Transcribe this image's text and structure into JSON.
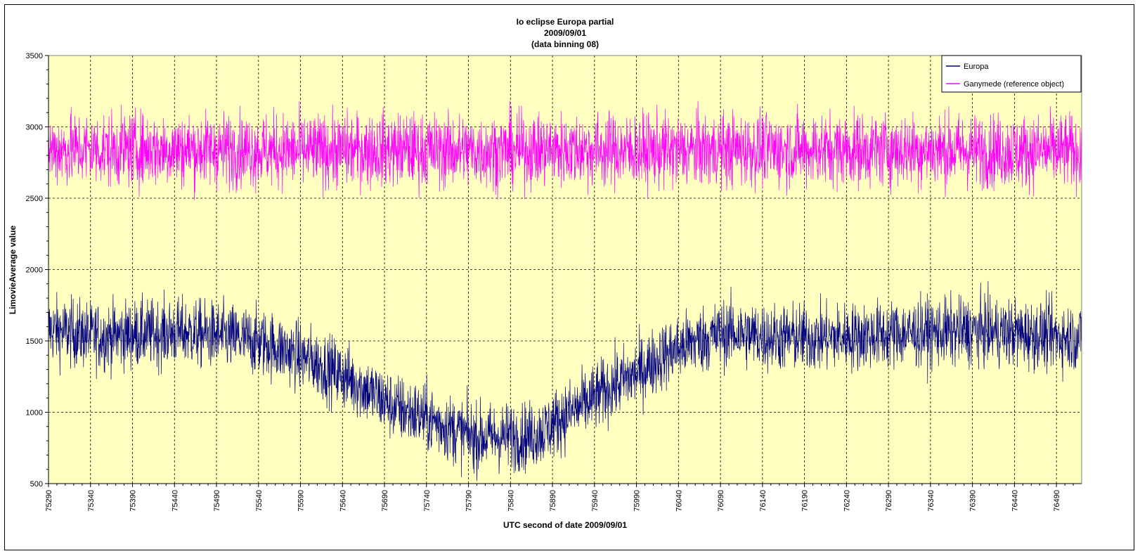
{
  "chart_data": {
    "type": "line",
    "title": [
      "Io eclipse Europa partial",
      "2009/09/01",
      "(data binning 08)"
    ],
    "xlabel": "UTC second  of date 2009/09/01",
    "ylabel": "LimovieAverage value",
    "xlim": [
      75290,
      76520
    ],
    "ylim": [
      500,
      3500
    ],
    "yticks": [
      500,
      1000,
      1500,
      2000,
      2500,
      3000,
      3500
    ],
    "xticks": [
      75290,
      75340,
      75390,
      75440,
      75490,
      75540,
      75590,
      75640,
      75690,
      75740,
      75790,
      75840,
      75890,
      75940,
      75990,
      76040,
      76090,
      76140,
      76190,
      76240,
      76290,
      76340,
      76390,
      76440,
      76490
    ],
    "grid": true,
    "plot_background": "#ffffc0",
    "legend_position": "top-right",
    "series": [
      {
        "name": "Europa",
        "color": "#000080",
        "x": [
          75290,
          75350,
          75400,
          75450,
          75500,
          75550,
          75600,
          75650,
          75700,
          75740,
          75780,
          75800,
          75830,
          75860,
          75880,
          75900,
          75930,
          75960,
          75990,
          76020,
          76060,
          76100,
          76140,
          76200,
          76250,
          76300,
          76350,
          76400,
          76450,
          76520
        ],
        "y": [
          1580,
          1530,
          1550,
          1560,
          1530,
          1480,
          1370,
          1230,
          1040,
          960,
          860,
          820,
          830,
          830,
          870,
          960,
          1060,
          1180,
          1270,
          1390,
          1500,
          1560,
          1530,
          1520,
          1530,
          1550,
          1560,
          1570,
          1550,
          1520
        ]
      },
      {
        "name": "Ganymede (reference object)",
        "color": "#ff00ff",
        "x": [
          75290,
          75400,
          75500,
          75600,
          75700,
          75800,
          75900,
          76000,
          76100,
          76200,
          76300,
          76400,
          76520
        ],
        "y": [
          2840,
          2840,
          2840,
          2830,
          2840,
          2830,
          2840,
          2830,
          2840,
          2840,
          2840,
          2830,
          2830
        ]
      }
    ]
  }
}
